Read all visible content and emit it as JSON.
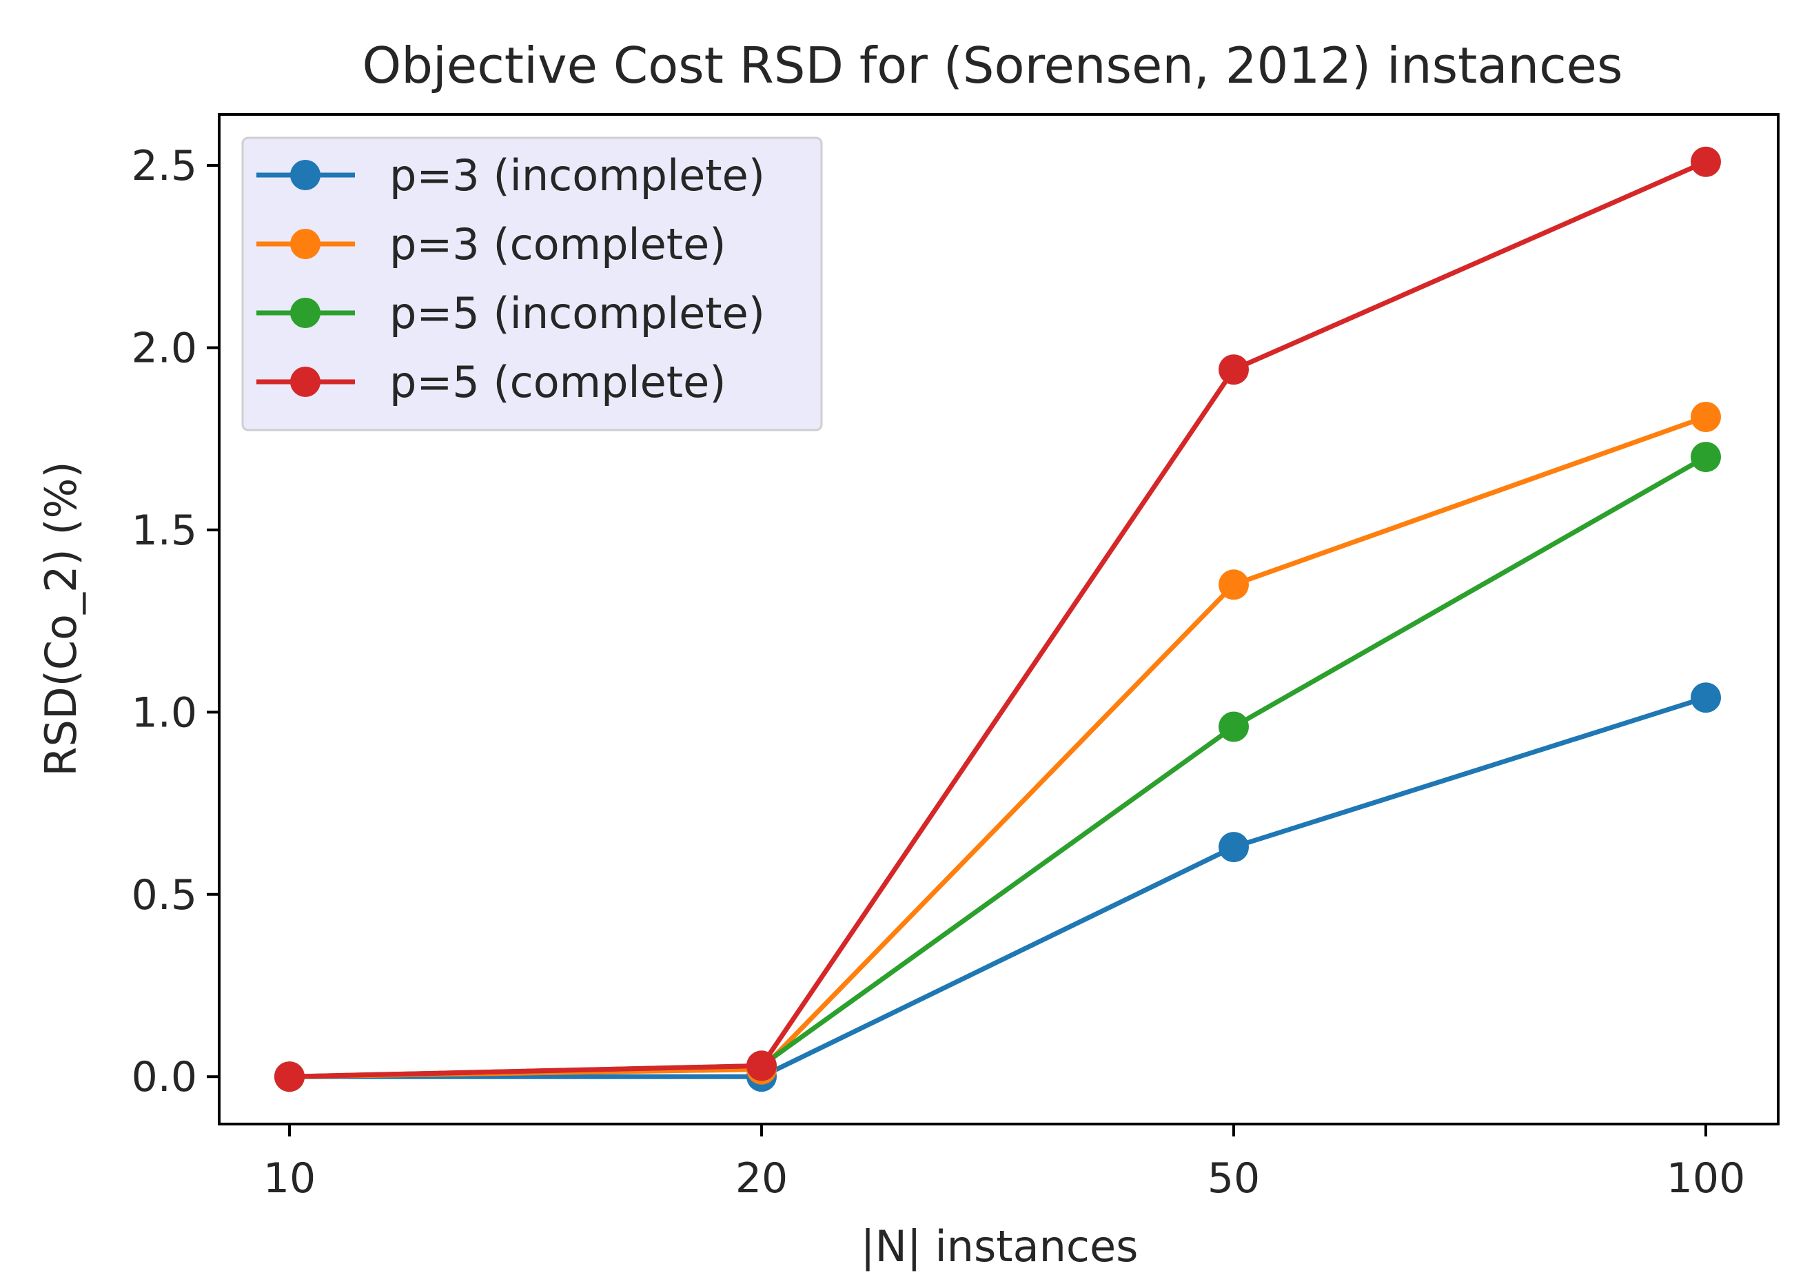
{
  "chart_data": {
    "type": "line",
    "title": "Objective Cost RSD for (Sorensen, 2012) instances",
    "xlabel": "|N| instances",
    "ylabel": "RSD(Co_2) (%)",
    "categories": [
      "10",
      "20",
      "50",
      "100"
    ],
    "ylim": [
      -0.13,
      2.64
    ],
    "yticks": [
      "0.0",
      "0.5",
      "1.0",
      "1.5",
      "2.0",
      "2.5"
    ],
    "grid": false,
    "legend_position": "upper-left",
    "series": [
      {
        "name": "p=3 (incomplete)",
        "color": "#1f77b4",
        "values": [
          0.0,
          0.0,
          0.63,
          1.04
        ]
      },
      {
        "name": "p=3 (complete)",
        "color": "#ff7f0e",
        "values": [
          0.0,
          0.02,
          1.35,
          1.81
        ]
      },
      {
        "name": "p=5 (incomplete)",
        "color": "#2ca02c",
        "values": [
          0.0,
          0.03,
          0.96,
          1.7
        ]
      },
      {
        "name": "p=5 (complete)",
        "color": "#d62728",
        "values": [
          0.0,
          0.03,
          1.94,
          2.51
        ]
      }
    ]
  }
}
